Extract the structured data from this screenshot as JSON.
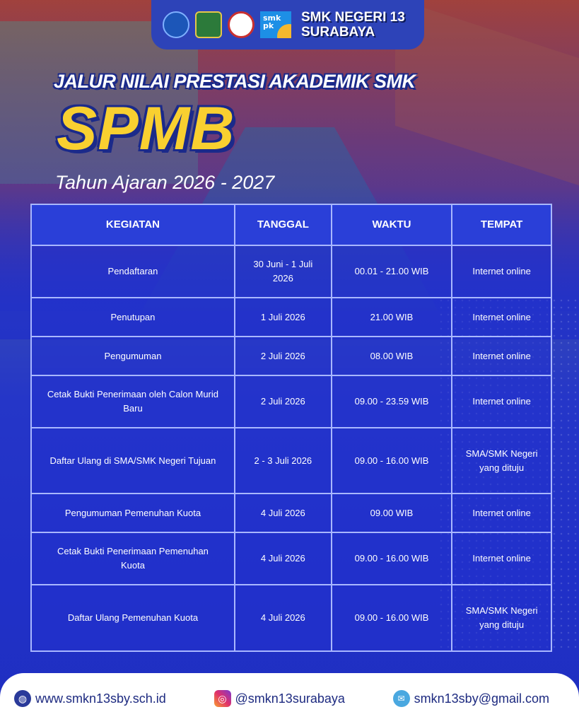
{
  "header": {
    "school_line1": "SMK NEGERI 13",
    "school_line2": "SURABAYA",
    "logos": [
      "kemendikbud-logo",
      "jatim-logo",
      "smkn13-logo",
      "smk-pk-logo"
    ],
    "smkpk_text": "smk pk"
  },
  "subtitle": "JALUR NILAI PRESTASI AKADEMIK SMK",
  "title": "SPMB",
  "year": "Tahun Ajaran 2026 - 2027",
  "colors": {
    "title": "#f9d030",
    "background": "#2333c6",
    "outline": "#1b2a8a"
  },
  "table": {
    "columns": [
      "KEGIATAN",
      "TANGGAL",
      "WAKTU",
      "TEMPAT"
    ],
    "rows": [
      [
        "Pendaftaran",
        "30 Juni - 1 Juli 2026",
        "00.01 - 21.00 WIB",
        "Internet online"
      ],
      [
        "Penutupan",
        "1 Juli 2026",
        "21.00 WIB",
        "Internet online"
      ],
      [
        "Pengumuman",
        "2 Juli 2026",
        "08.00 WIB",
        "Internet online"
      ],
      [
        "Cetak Bukti Penerimaan oleh Calon Murid Baru",
        "2 Juli 2026",
        "09.00 - 23.59 WIB",
        "Internet online"
      ],
      [
        "Daftar Ulang di SMA/SMK Negeri Tujuan",
        "2 - 3 Juli 2026",
        "09.00 - 16.00 WIB",
        "SMA/SMK Negeri yang dituju"
      ],
      [
        "Pengumuman Pemenuhan Kuota",
        "4 Juli 2026",
        "09.00 WIB",
        "Internet online"
      ],
      [
        "Cetak Bukti Penerimaan Pemenuhan Kuota",
        "4 Juli 2026",
        "09.00 - 16.00 WIB",
        "Internet online"
      ],
      [
        "Daftar Ulang Pemenuhan Kuota",
        "4 Juli 2026",
        "09.00 - 16.00 WIB",
        "SMA/SMK Negeri yang dituju"
      ]
    ]
  },
  "footer": {
    "website": "www.smkn13sby.sch.id",
    "instagram": "@smkn13surabaya",
    "email": "smkn13sby@gmail.com"
  }
}
